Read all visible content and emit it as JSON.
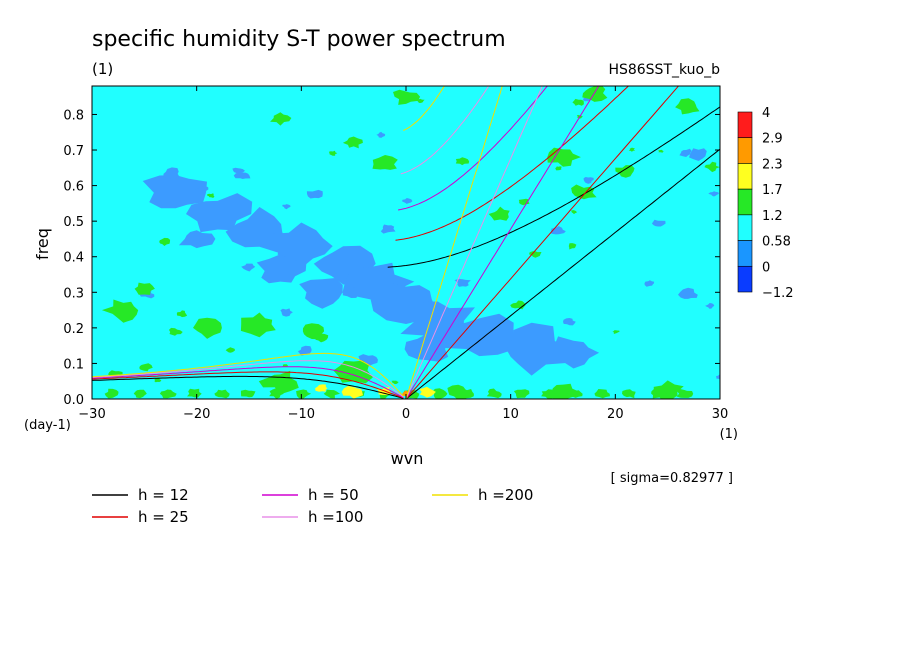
{
  "chart_data": {
    "type": "heatmap",
    "title": "specific humidity S-T power spectrum",
    "units_label": "(1)",
    "run_label": "HS86SST_kuo_b",
    "xlabel": "wvn",
    "ylabel": "freq",
    "x_unit": "(1)",
    "y_unit": "(day-1)",
    "xlim": [
      -30,
      30
    ],
    "ylim": [
      0,
      0.88
    ],
    "x_ticks": [
      -30,
      -20,
      -10,
      0,
      10,
      20,
      30
    ],
    "y_ticks": [
      0.0,
      0.1,
      0.2,
      0.3,
      0.4,
      0.5,
      0.6,
      0.7,
      0.8
    ],
    "sigma_label": "[ sigma=0.82977 ]",
    "colorbar": {
      "levels": [
        "4",
        "2.9",
        "2.3",
        "1.7",
        "1.2",
        "0.58",
        "0",
        "-1.2"
      ],
      "colors": [
        "#ff1c1c",
        "#ff9a00",
        "#ffff20",
        "#26e826",
        "#20ffff",
        "#1a96ff",
        "#0a3cff"
      ]
    },
    "background_color": "#20ffff",
    "blob_colors": {
      "low": "#3c9bff",
      "high": "#26e826",
      "peak": "#ffff20",
      "max": "#ff9a00"
    },
    "dispersion_curves": [
      {
        "label": "h = 12",
        "h": 12,
        "color": "#000000"
      },
      {
        "label": "h = 25",
        "h": 25,
        "color": "#e00000"
      },
      {
        "label": "h = 50",
        "h": 50,
        "color": "#d000d0"
      },
      {
        "label": "h =100",
        "h": 100,
        "color": "#e890e8"
      },
      {
        "label": "h =200",
        "h": 200,
        "color": "#f0e000"
      }
    ]
  }
}
